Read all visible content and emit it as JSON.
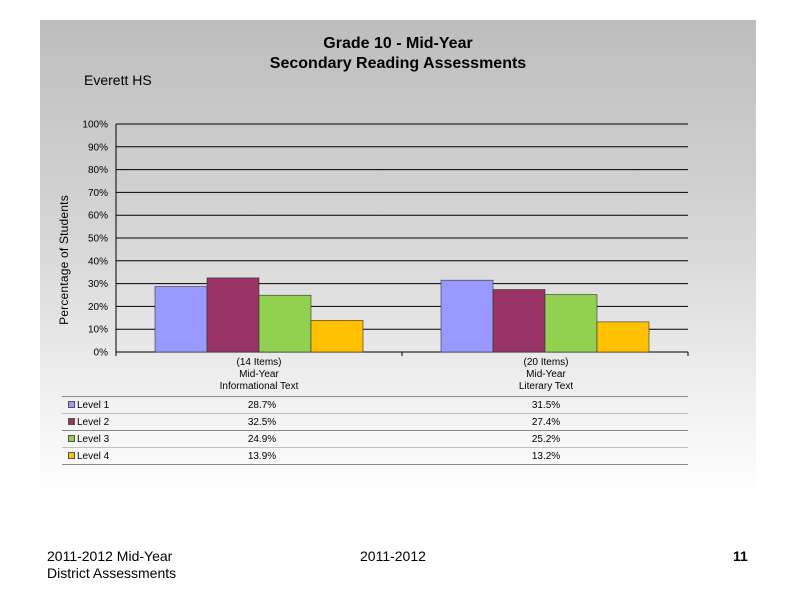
{
  "header": {
    "title_line1": "Grade 10 - Mid-Year",
    "title_line2": "Secondary Reading Assessments",
    "school": "Everett HS"
  },
  "chart_data": {
    "type": "bar",
    "ylabel": "Percentage of Students",
    "ylim": [
      0,
      100
    ],
    "yticks": [
      "0%",
      "10%",
      "20%",
      "30%",
      "40%",
      "50%",
      "60%",
      "70%",
      "80%",
      "90%",
      "100%"
    ],
    "grid": true,
    "categories": [
      {
        "line1": "(14 Items)",
        "line2": "Mid-Year",
        "line3": "Informational Text"
      },
      {
        "line1": "(20 Items)",
        "line2": "Mid-Year",
        "line3": "Literary Text"
      }
    ],
    "series": [
      {
        "name": "Level 1",
        "color": "#9999ff",
        "values": [
          28.7,
          31.5
        ],
        "labels": [
          "28.7%",
          "31.5%"
        ]
      },
      {
        "name": "Level 2",
        "color": "#993366",
        "values": [
          32.5,
          27.4
        ],
        "labels": [
          "32.5%",
          "27.4%"
        ]
      },
      {
        "name": "Level 3",
        "color": "#92d050",
        "values": [
          24.9,
          25.2
        ],
        "labels": [
          "24.9%",
          "25.2%"
        ]
      },
      {
        "name": "Level 4",
        "color": "#ffc000",
        "values": [
          13.9,
          13.2
        ],
        "labels": [
          "13.9%",
          "13.2%"
        ]
      }
    ]
  },
  "footer": {
    "left_line1": "2011-2012  Mid-Year",
    "left_line2": "District Assessments",
    "center": "2011-2012",
    "page_number": "11"
  }
}
